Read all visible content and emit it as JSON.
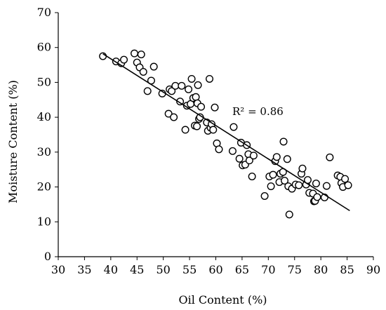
{
  "chart_data": {
    "type": "scatter",
    "xlabel": "Oil Content (%)",
    "ylabel": "Moisture Content (%)",
    "xlim": [
      30,
      90
    ],
    "ylim": [
      0,
      70
    ],
    "xticks": [
      30,
      35,
      40,
      45,
      50,
      55,
      60,
      65,
      70,
      75,
      80,
      85,
      90
    ],
    "yticks": [
      0,
      10,
      20,
      30,
      40,
      50,
      60,
      70
    ],
    "grid": false,
    "annotation": "R² = 0.86",
    "trendline": {
      "x": [
        38.5,
        85.5
      ],
      "y": [
        58.2,
        13.2
      ]
    },
    "series": [
      {
        "points": [
          [
            38.5,
            57.5
          ],
          [
            41.0,
            56.0
          ],
          [
            42.0,
            55.5
          ],
          [
            42.5,
            56.5
          ],
          [
            44.5,
            58.3
          ],
          [
            45.0,
            55.7
          ],
          [
            45.5,
            54.3
          ],
          [
            45.8,
            58.0
          ],
          [
            46.2,
            53.0
          ],
          [
            47.0,
            47.5
          ],
          [
            47.7,
            50.5
          ],
          [
            48.2,
            54.5
          ],
          [
            49.8,
            46.8
          ],
          [
            51.0,
            41.0
          ],
          [
            51.2,
            48.0
          ],
          [
            51.6,
            47.5
          ],
          [
            52.0,
            40.0
          ],
          [
            52.3,
            49.0
          ],
          [
            53.2,
            44.5
          ],
          [
            53.5,
            49.0
          ],
          [
            54.2,
            36.4
          ],
          [
            54.5,
            43.3
          ],
          [
            54.8,
            48.0
          ],
          [
            55.2,
            43.8
          ],
          [
            55.4,
            51.0
          ],
          [
            55.7,
            45.5
          ],
          [
            56.0,
            37.6
          ],
          [
            56.2,
            45.8
          ],
          [
            56.4,
            37.4
          ],
          [
            56.5,
            44.0
          ],
          [
            56.6,
            49.2
          ],
          [
            56.8,
            39.5
          ],
          [
            57.0,
            40.0
          ],
          [
            57.2,
            43.0
          ],
          [
            58.3,
            38.5
          ],
          [
            58.5,
            36.1
          ],
          [
            58.8,
            51.0
          ],
          [
            59.0,
            37.0
          ],
          [
            59.2,
            38.0
          ],
          [
            59.5,
            36.4
          ],
          [
            59.8,
            42.8
          ],
          [
            60.2,
            32.5
          ],
          [
            60.6,
            30.8
          ],
          [
            63.2,
            30.3
          ],
          [
            63.4,
            37.2
          ],
          [
            64.5,
            28.1
          ],
          [
            64.8,
            32.7
          ],
          [
            65.1,
            26.2
          ],
          [
            65.6,
            26.4
          ],
          [
            65.9,
            32.0
          ],
          [
            66.2,
            29.4
          ],
          [
            66.4,
            27.6
          ],
          [
            66.9,
            23.0
          ],
          [
            67.2,
            29.0
          ],
          [
            69.3,
            17.4
          ],
          [
            70.2,
            23.0
          ],
          [
            70.5,
            20.2
          ],
          [
            70.9,
            23.5
          ],
          [
            71.3,
            27.4
          ],
          [
            71.6,
            28.6
          ],
          [
            72.1,
            21.4
          ],
          [
            72.3,
            23.8
          ],
          [
            72.8,
            24.3
          ],
          [
            72.9,
            33.0
          ],
          [
            73.1,
            21.8
          ],
          [
            73.6,
            28.0
          ],
          [
            73.8,
            20.2
          ],
          [
            74.0,
            12.1
          ],
          [
            74.5,
            19.5
          ],
          [
            75.2,
            20.7
          ],
          [
            75.8,
            20.5
          ],
          [
            76.3,
            23.8
          ],
          [
            76.5,
            25.3
          ],
          [
            77.2,
            20.7
          ],
          [
            77.5,
            22.0
          ],
          [
            77.8,
            18.3
          ],
          [
            78.5,
            18.1
          ],
          [
            78.7,
            15.9
          ],
          [
            78.9,
            16.0
          ],
          [
            79.1,
            21.0
          ],
          [
            79.3,
            17.1
          ],
          [
            80.7,
            17.0
          ],
          [
            81.1,
            20.3
          ],
          [
            81.7,
            28.5
          ],
          [
            83.2,
            23.3
          ],
          [
            83.7,
            22.9
          ],
          [
            83.9,
            21.1
          ],
          [
            84.2,
            20.0
          ],
          [
            84.6,
            22.3
          ],
          [
            85.2,
            20.5
          ]
        ]
      }
    ]
  }
}
